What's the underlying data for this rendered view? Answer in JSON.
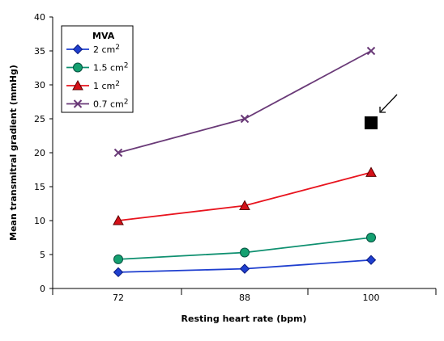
{
  "chart_data": {
    "type": "line",
    "title": "",
    "xlabel": "Resting heart rate (bpm)",
    "ylabel": "Mean transmitral gradient (mmHg)",
    "categories": [
      "72",
      "88",
      "100"
    ],
    "ylim": [
      0,
      40
    ],
    "yticks": [
      "0",
      "5",
      "10",
      "15",
      "20",
      "25",
      "30",
      "35",
      "40"
    ],
    "grid": false,
    "legend": {
      "title": "MVA",
      "placement": "top-left"
    },
    "series": [
      {
        "name": "2 cm",
        "sup": "2",
        "marker": "diamond",
        "color": "#1f3fcf",
        "fill": "#1f3fcf",
        "values": [
          2.4,
          2.9,
          4.2
        ]
      },
      {
        "name": "1.5 cm",
        "sup": "2",
        "marker": "circle",
        "color": "#0f9070",
        "fill": "#14a070",
        "values": [
          4.3,
          5.3,
          7.5
        ]
      },
      {
        "name": "1 cm",
        "sup": "2",
        "marker": "triangle",
        "color": "#e8141e",
        "fill": "#d51018",
        "values": [
          10.0,
          12.2,
          17.1
        ]
      },
      {
        "name": "0.7 cm",
        "sup": "2",
        "marker": "x",
        "color": "#6a3a78",
        "fill": "#6a3a78",
        "values": [
          20.0,
          25.0,
          35.0
        ]
      }
    ],
    "annotations": [
      {
        "type": "square-marker",
        "category": "100",
        "y": 24.4,
        "color": "#000000"
      },
      {
        "type": "arrow",
        "points_to": "square-marker"
      }
    ]
  }
}
